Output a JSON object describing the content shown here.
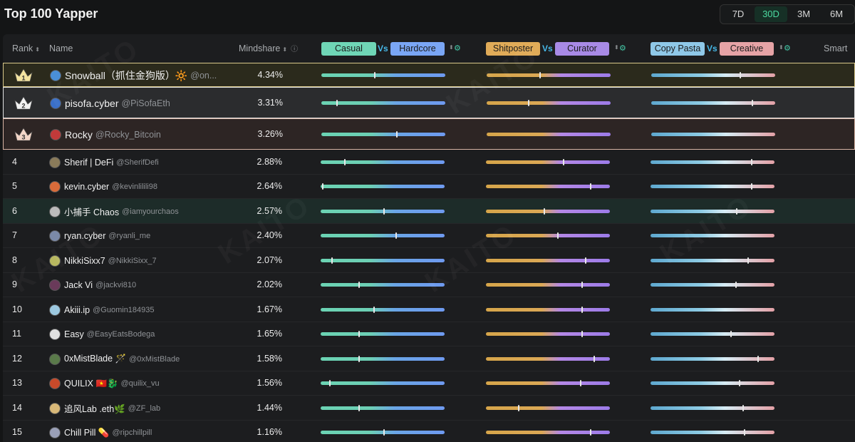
{
  "header": {
    "title": "Top 100 Yapper"
  },
  "periods": [
    {
      "label": "7D",
      "active": false
    },
    {
      "label": "30D",
      "active": true
    },
    {
      "label": "3M",
      "active": false
    },
    {
      "label": "6M",
      "active": false
    }
  ],
  "columns": {
    "rank": "Rank",
    "name": "Name",
    "mindshare": "Mindshare",
    "casual": "Casual",
    "vs": "Vs",
    "hardcore": "Hardcore",
    "shitposter": "Shitposter",
    "curator": "Curator",
    "copypasta": "Copy Pasta",
    "creative": "Creative",
    "smart": "Smart",
    "sort_glyph": "⬍",
    "info_glyph": "ⓘ",
    "gear_glyph": "⚙"
  },
  "colors": {
    "casual": "#6fd6b6",
    "hardcore": "#7aa6f5",
    "shitposter": "#e0ab58",
    "curator": "#a88ae6",
    "copypasta": "#8fc8e8",
    "creative": "#e6a3a6",
    "highlight_1": "#2b2a1c",
    "highlight_2": "#2b2c2e",
    "highlight_3": "#2d2524",
    "highlight_6": "#1d2c29"
  },
  "watermark": "KAITO",
  "rows": [
    {
      "rank": "1",
      "name": "Snowball（抓住金狗版）🔆",
      "handle": "@on...",
      "mindshare": "4.34%",
      "p1": 0.43,
      "p2": 0.43,
      "p3": 0.72,
      "avatar": "#4a8fd8"
    },
    {
      "rank": "2",
      "name": "pisofa.cyber",
      "handle": "@PiSofaEth",
      "mindshare": "3.31%",
      "p1": 0.12,
      "p2": 0.34,
      "p3": 0.82,
      "avatar": "#3a6fc8"
    },
    {
      "rank": "3",
      "name": "Rocky",
      "handle": "@Rocky_Bitcoin",
      "mindshare": "3.26%",
      "p1": 0.61,
      "p2": 0.0,
      "p3": 0.0,
      "avatar": "#c23a3a"
    },
    {
      "rank": "4",
      "name": "Sherif | DeFi",
      "handle": "@SherifDefi",
      "mindshare": "2.88%",
      "p1": 0.19,
      "p2": 0.63,
      "p3": 0.82,
      "avatar": "#8a7b5a"
    },
    {
      "rank": "5",
      "name": "kevin.cyber",
      "handle": "@kevinlilili98",
      "mindshare": "2.64%",
      "p1": 0.01,
      "p2": 0.85,
      "p3": 0.82,
      "avatar": "#d86b3a"
    },
    {
      "rank": "6",
      "name": "小捕手 Chaos",
      "handle": "@iamyourchaos",
      "mindshare": "2.57%",
      "p1": 0.51,
      "p2": 0.47,
      "p3": 0.7,
      "avatar": "#bbbbbb"
    },
    {
      "rank": "7",
      "name": "ryan.cyber",
      "handle": "@ryanli_me",
      "mindshare": "2.40%",
      "p1": 0.61,
      "p2": 0.58,
      "p3": 0.0,
      "avatar": "#7b8aa8"
    },
    {
      "rank": "8",
      "name": "NikkiSixx7",
      "handle": "@NikkiSixx_7",
      "mindshare": "2.07%",
      "p1": 0.09,
      "p2": 0.81,
      "p3": 0.79,
      "avatar": "#b8b860"
    },
    {
      "rank": "9",
      "name": "Jack Vi",
      "handle": "@jackvi810",
      "mindshare": "2.02%",
      "p1": 0.31,
      "p2": 0.78,
      "p3": 0.69,
      "avatar": "#6a3a5a"
    },
    {
      "rank": "10",
      "name": "Akiii.ip",
      "handle": "@Guomin184935",
      "mindshare": "1.67%",
      "p1": 0.43,
      "p2": 0.78,
      "p3": 0.0,
      "avatar": "#9cc8e0"
    },
    {
      "rank": "11",
      "name": "Easy",
      "handle": "@EasyEatsBodega",
      "mindshare": "1.65%",
      "p1": 0.31,
      "p2": 0.78,
      "p3": 0.65,
      "avatar": "#e0e0e0"
    },
    {
      "rank": "12",
      "name": "0xMistBlade 🪄",
      "handle": "@0xMistBlade",
      "mindshare": "1.58%",
      "p1": 0.31,
      "p2": 0.88,
      "p3": 0.87,
      "avatar": "#5a7a4a"
    },
    {
      "rank": "13",
      "name": "QUILIX 🇻🇳🐉",
      "handle": "@quilix_vu",
      "mindshare": "1.56%",
      "p1": 0.07,
      "p2": 0.77,
      "p3": 0.72,
      "avatar": "#c84a2a"
    },
    {
      "rank": "14",
      "name": "追风Lab .eth🌿",
      "handle": "@ZF_lab",
      "mindshare": "1.44%",
      "p1": 0.31,
      "p2": 0.26,
      "p3": 0.75,
      "avatar": "#d8b878"
    },
    {
      "rank": "15",
      "name": "Chill Pill 💊",
      "handle": "@ripchillpill",
      "mindshare": "1.16%",
      "p1": 0.51,
      "p2": 0.85,
      "p3": 0.76,
      "avatar": "#9aa0b8"
    }
  ]
}
